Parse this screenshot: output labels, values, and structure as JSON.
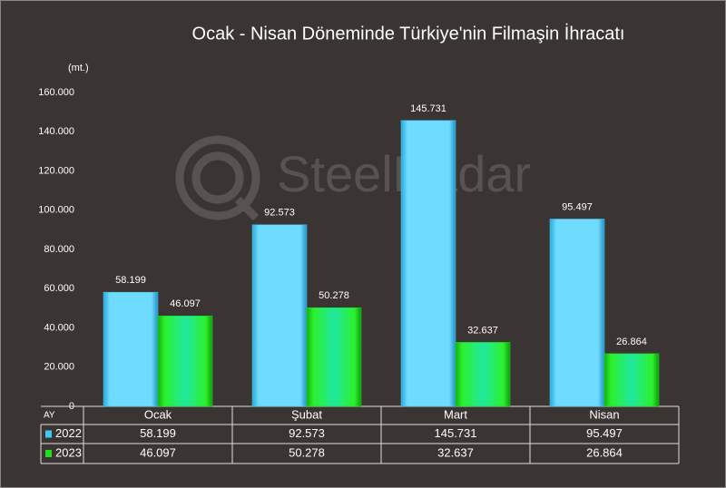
{
  "chart_data": {
    "type": "bar",
    "title": "Ocak - Nisan Döneminde Türkiye'nin Filmaşin İhracatı",
    "unit_label": "(mt.)",
    "watermark": "SteelRadar",
    "table_header": "AY",
    "categories": [
      "Ocak",
      "Şubat",
      "Mart",
      "Nisan"
    ],
    "series": [
      {
        "name": "2022",
        "color": "#3fc8f4",
        "values": [
          58199,
          92573,
          145731,
          95497
        ],
        "value_labels": [
          "58.199",
          "92.573",
          "145.731",
          "95.497"
        ]
      },
      {
        "name": "2023",
        "color": "#1ee01e",
        "values": [
          46097,
          50278,
          32637,
          26864
        ],
        "value_labels": [
          "46.097",
          "50.278",
          "32.637",
          "26.864"
        ]
      }
    ],
    "ylim": [
      0,
      160000
    ],
    "yticks": [
      0,
      {
        "value": 20000,
        "label": "20.000"
      },
      {
        "value": 40000,
        "label": "40.000"
      },
      {
        "value": 60000,
        "label": "60.000"
      },
      {
        "value": 80000,
        "label": "80.000"
      },
      {
        "value": 100000,
        "label": "100.000"
      },
      {
        "value": 120000,
        "label": "120.000"
      },
      {
        "value": 140000,
        "label": "140.000"
      },
      {
        "value": 160000,
        "label": "160.000"
      }
    ],
    "grid": false,
    "data_table": true
  }
}
